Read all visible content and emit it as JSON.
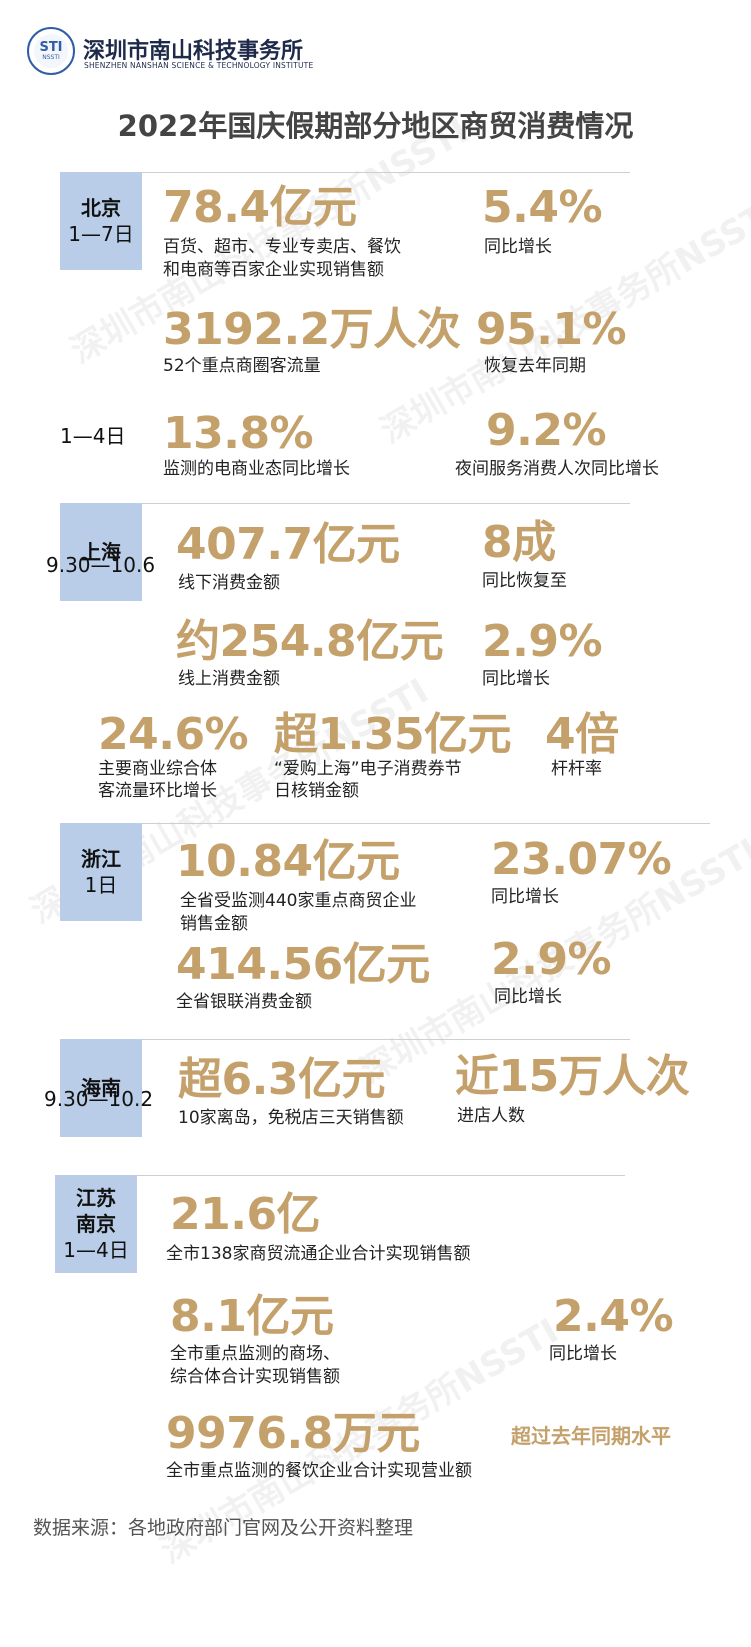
{
  "header": {
    "logo_text": "STI",
    "logo_sub": "NSSTI",
    "org_name": "深圳市南山科技事务所",
    "org_name_en": "SHENZHEN NANSHAN SCIENCE & TECHNOLOGY INSTITUTE",
    "title": "2022年国庆假期部分地区商贸消费情况"
  },
  "watermark": "深圳市南山科技事务所NSSTI",
  "beijing": {
    "region": "北京",
    "period": "1—7日",
    "period2": "1—4日",
    "s1": {
      "value": "78.4亿元",
      "desc1": "百货、超市、专业专卖店、餐饮",
      "desc2": "和电商等百家企业实现销售额"
    },
    "s2": {
      "value": "5.4%",
      "desc": "同比增长"
    },
    "s3": {
      "value": "3192.2万人次",
      "desc": "52个重点商圈客流量"
    },
    "s4": {
      "value": "95.1%",
      "desc": "恢复去年同期"
    },
    "s5": {
      "value": "13.8%",
      "desc": "监测的电商业态同比增长"
    },
    "s6": {
      "value": "9.2%",
      "desc": "夜间服务消费人次同比增长"
    }
  },
  "shanghai": {
    "region": "上海",
    "period": "9.30—10.6",
    "s1": {
      "value": "407.7亿元",
      "desc": "线下消费金额"
    },
    "s2": {
      "value": "8成",
      "desc": "同比恢复至"
    },
    "s3": {
      "value": "约254.8亿元",
      "desc": "线上消费金额"
    },
    "s4": {
      "value": "2.9%",
      "desc": "同比增长"
    },
    "s5": {
      "value": "24.6%",
      "desc1": "主要商业综合体",
      "desc2": "客流量环比增长"
    },
    "s6": {
      "value": "超1.35亿元",
      "desc1": "“爱购上海”电子消费券节",
      "desc2": "日核销金额"
    },
    "s7": {
      "value": "4倍",
      "desc": "杆杆率"
    }
  },
  "zhejiang": {
    "region": "浙江",
    "period": "1日",
    "s1": {
      "value": "10.84亿元",
      "desc1": "全省受监测440家重点商贸企业",
      "desc2": "销售金额"
    },
    "s2": {
      "value": "23.07%",
      "desc": "同比增长"
    },
    "s3": {
      "value": "414.56亿元",
      "desc": "全省银联消费金额"
    },
    "s4": {
      "value": "2.9%",
      "desc": "同比增长"
    }
  },
  "hainan": {
    "region": "海南",
    "period": "9.30—10.2",
    "s1": {
      "value": "超6.3亿元",
      "desc": "10家离岛，免税店三天销售额"
    },
    "s2": {
      "value": "近15万人次",
      "desc": "进店人数"
    }
  },
  "jiangsu": {
    "region1": "江苏",
    "region2": "南京",
    "period": "1—4日",
    "s1": {
      "value": "21.6亿",
      "desc": "全市138家商贸流通企业合计实现销售额"
    },
    "s2": {
      "value": "8.1亿元",
      "desc1": "全市重点监测的商场、",
      "desc2": "综合体合计实现销售额"
    },
    "s3": {
      "value": "2.4%",
      "desc": "同比增长"
    },
    "s4": {
      "value": "9976.8万元",
      "desc": "全市重点监测的餐饮企业合计实现营业额"
    },
    "s5": {
      "note": "超过去年同期水平"
    }
  },
  "footer": {
    "source": "数据来源：各地政府部门官网及公开资料整理"
  }
}
